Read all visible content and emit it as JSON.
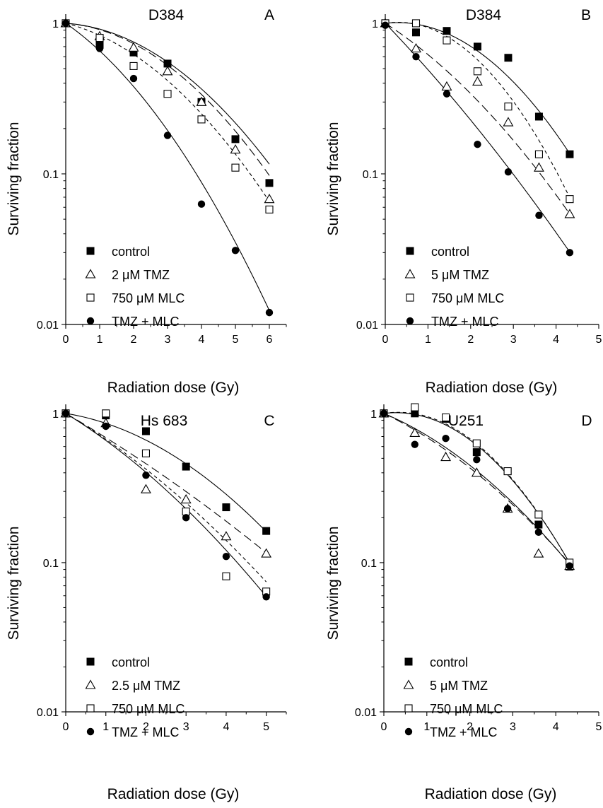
{
  "figure": {
    "yaxis_label": "Surviving fraction",
    "xaxis_label": "Radiation dose (Gy)"
  },
  "chart_data": [
    {
      "type": "scatter",
      "panel_letter": "A",
      "title": "D384",
      "xlabel": "Radiation dose (Gy)",
      "ylabel": "Surviving fraction",
      "xlim": [
        0,
        6.5
      ],
      "ylim": [
        0.01,
        1.15
      ],
      "y_scale": "log",
      "xticks": [
        "0",
        "1",
        "2",
        "3",
        "4",
        "5",
        "6"
      ],
      "yticks": [
        "0.01",
        "0.1",
        "1"
      ],
      "legend_position": "bottom-left",
      "series": [
        {
          "name": "control",
          "marker": "filled-square",
          "dash": "solid",
          "x": [
            0,
            1,
            2,
            3,
            4,
            5,
            6
          ],
          "y": [
            1.0,
            0.72,
            0.64,
            0.54,
            0.3,
            0.17,
            0.087
          ],
          "fit": [
            0,
            0.035,
            0.054
          ]
        },
        {
          "name": "2 μM TMZ",
          "marker": "open-triangle",
          "dash": "long",
          "x": [
            0,
            1,
            2,
            3,
            4,
            5,
            6
          ],
          "y": [
            1.0,
            0.82,
            0.69,
            0.48,
            0.3,
            0.145,
            0.068
          ],
          "fit": [
            0,
            0.04,
            0.058
          ]
        },
        {
          "name": "750 μM MLC",
          "marker": "open-square",
          "dash": "short",
          "x": [
            0,
            1,
            2,
            3,
            4,
            5,
            6
          ],
          "y": [
            1.0,
            0.8,
            0.52,
            0.34,
            0.23,
            0.11,
            0.058
          ],
          "fit": [
            0,
            0.13,
            0.054
          ]
        },
        {
          "name": "TMZ + MLC",
          "marker": "filled-circle",
          "dash": "solid",
          "x": [
            0,
            1,
            2,
            3,
            4,
            5,
            6
          ],
          "y": [
            1.0,
            0.68,
            0.43,
            0.18,
            0.063,
            0.031,
            0.012
          ],
          "fit": [
            0,
            0.36,
            0.062
          ]
        }
      ]
    },
    {
      "type": "scatter",
      "panel_letter": "B",
      "title": "D384",
      "xlabel": "Radiation dose (Gy)",
      "ylabel": "Surviving fraction",
      "xlim": [
        0,
        5
      ],
      "ylim": [
        0.01,
        1.15
      ],
      "y_scale": "log",
      "xticks": [
        "0",
        "1",
        "2",
        "3",
        "4",
        "5"
      ],
      "yticks": [
        "0.01",
        "0.1",
        "1"
      ],
      "legend_position": "bottom-left",
      "series": [
        {
          "name": "control",
          "marker": "filled-square",
          "dash": "solid",
          "x": [
            0,
            0.72,
            1.44,
            2.16,
            2.88,
            3.6,
            4.32
          ],
          "y": [
            1.0,
            0.87,
            0.89,
            0.7,
            0.59,
            0.24,
            0.135
          ],
          "fit": [
            0,
            -0.07,
            0.123
          ]
        },
        {
          "name": "5 μM TMZ",
          "marker": "open-triangle",
          "dash": "long",
          "x": [
            0,
            0.72,
            1.44,
            2.16,
            2.88,
            3.6,
            4.32
          ],
          "y": [
            1.0,
            0.68,
            0.38,
            0.41,
            0.22,
            0.11,
            0.054
          ],
          "fit": [
            0,
            0.42,
            0.059
          ]
        },
        {
          "name": "750 μM MLC",
          "marker": "open-square",
          "dash": "short",
          "x": [
            0,
            0.72,
            1.44,
            2.16,
            2.88,
            3.6,
            4.32
          ],
          "y": [
            1.0,
            1.0,
            0.77,
            0.48,
            0.28,
            0.135,
            0.068
          ],
          "fit": [
            0,
            -0.1,
            0.166
          ]
        },
        {
          "name": "TMZ + MLC",
          "marker": "filled-circle",
          "dash": "solid",
          "x": [
            0,
            0.72,
            1.44,
            2.16,
            2.88,
            3.6,
            4.32
          ],
          "y": [
            0.97,
            0.6,
            0.34,
            0.157,
            0.103,
            0.053,
            0.03
          ],
          "fit": [
            0,
            0.68,
            0.03
          ]
        }
      ]
    },
    {
      "type": "scatter",
      "panel_letter": "C",
      "title": "Hs 683",
      "xlabel": "Radiation dose (Gy)",
      "ylabel": "Surviving fraction",
      "xlim": [
        0,
        5.5
      ],
      "ylim": [
        0.01,
        1.15
      ],
      "y_scale": "log",
      "xticks": [
        "0",
        "1",
        "2",
        "3",
        "4",
        "5"
      ],
      "yticks": [
        "0.01",
        "0.1",
        "1"
      ],
      "legend_position": "bottom-left",
      "series": [
        {
          "name": "control",
          "marker": "filled-square",
          "dash": "solid",
          "x": [
            0,
            1,
            2,
            3,
            4,
            5
          ],
          "y": [
            1.0,
            0.97,
            0.76,
            0.44,
            0.235,
            0.163
          ],
          "fit": [
            0,
            0.1,
            0.053
          ]
        },
        {
          "name": "2.5 μM TMZ",
          "marker": "open-triangle",
          "dash": "long",
          "x": [
            0,
            1,
            2,
            3,
            4,
            5
          ],
          "y": [
            1.0,
            0.86,
            0.31,
            0.265,
            0.15,
            0.115
          ],
          "fit": [
            0,
            0.36,
            0.014
          ]
        },
        {
          "name": "750 μM MLC",
          "marker": "open-square",
          "dash": "short",
          "x": [
            0,
            1,
            2,
            3,
            4,
            5
          ],
          "y": [
            1.0,
            1.0,
            0.54,
            0.22,
            0.081,
            0.064
          ],
          "fit": [
            0,
            0.37,
            0.03
          ]
        },
        {
          "name": "TMZ + MLC",
          "marker": "filled-circle",
          "dash": "solid",
          "x": [
            0,
            1,
            2,
            3,
            4,
            5
          ],
          "y": [
            1.0,
            0.82,
            0.385,
            0.2,
            0.11,
            0.059
          ],
          "fit": [
            0,
            0.38,
            0.037
          ]
        }
      ]
    },
    {
      "type": "scatter",
      "panel_letter": "D",
      "title": "U251",
      "xlabel": "Radiation dose (Gy)",
      "ylabel": "Surviving fraction",
      "xlim": [
        0,
        5
      ],
      "ylim": [
        0.01,
        1.15
      ],
      "y_scale": "log",
      "xticks": [
        "0",
        "1",
        "2",
        "3",
        "4",
        "5"
      ],
      "yticks": [
        "0.01",
        "0.1",
        "1"
      ],
      "legend_position": "bottom-left",
      "series": [
        {
          "name": "control",
          "marker": "filled-square",
          "dash": "solid",
          "x": [
            0,
            0.72,
            1.44,
            2.16,
            2.88,
            3.6,
            4.32
          ],
          "y": [
            1.0,
            1.0,
            0.92,
            0.55,
            0.41,
            0.18,
            0.094
          ],
          "fit": [
            0,
            -0.08,
            0.142
          ]
        },
        {
          "name": "5 μM TMZ",
          "marker": "open-triangle",
          "dash": "long",
          "x": [
            0,
            0.72,
            1.44,
            2.16,
            2.88,
            3.6,
            4.32
          ],
          "y": [
            1.0,
            0.74,
            0.51,
            0.4,
            0.23,
            0.115,
            0.095
          ],
          "fit": [
            0,
            0.32,
            0.05
          ]
        },
        {
          "name": "750 μM MLC",
          "marker": "open-square",
          "dash": "short",
          "x": [
            0,
            0.72,
            1.44,
            2.16,
            2.88,
            3.6,
            4.32
          ],
          "y": [
            1.0,
            1.1,
            0.94,
            0.63,
            0.41,
            0.21,
            0.1
          ],
          "fit": [
            0,
            -0.1,
            0.147
          ]
        },
        {
          "name": "TMZ + MLC",
          "marker": "filled-circle",
          "dash": "solid",
          "x": [
            0,
            0.72,
            1.44,
            2.16,
            2.88,
            3.6,
            4.32
          ],
          "y": [
            1.0,
            0.62,
            0.68,
            0.49,
            0.23,
            0.16,
            0.095
          ],
          "fit": [
            0,
            0.28,
            0.06
          ]
        }
      ]
    }
  ]
}
